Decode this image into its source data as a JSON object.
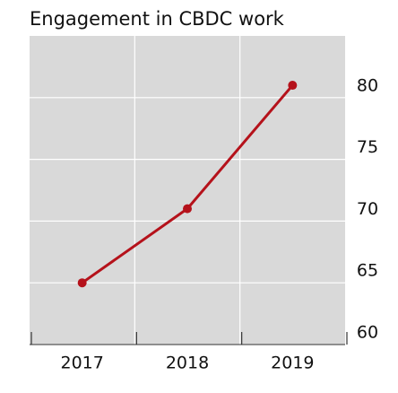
{
  "chart_data": {
    "type": "line",
    "title": "Engagement in CBDC work",
    "categories": [
      "2017",
      "2018",
      "2019"
    ],
    "values": [
      65,
      71,
      81
    ],
    "color": "#b5121b",
    "ylim": [
      60,
      85
    ],
    "yticks": [
      60,
      65,
      70,
      75,
      80
    ],
    "grid": true,
    "y_axis_side": "right"
  }
}
